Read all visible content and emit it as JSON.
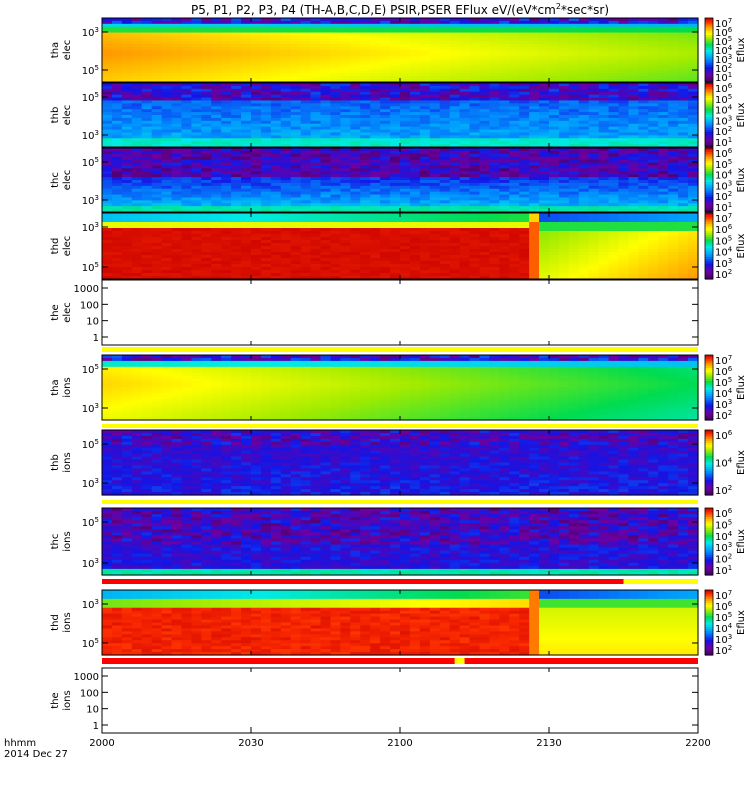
{
  "title": {
    "main": "P5, P1, P2, P3, P4 (TH-A,B,C,D,E) PSIR,PSER EFlux eV/(eV*cm",
    "sup": "2",
    "tail": "*sec*sr)"
  },
  "colors": {
    "background": "#ffffff",
    "saturated_red": "#cc0000",
    "flag_yellow": "#ffff00",
    "flag_red": "#ff0000"
  },
  "chart_data": {
    "type": "heatmap",
    "date": "2014 Dec 27",
    "time_axis": {
      "label": "hhmm",
      "range": [
        "2000",
        "2200"
      ],
      "ticks": [
        "2000",
        "2030",
        "2100",
        "2130",
        "2200"
      ]
    },
    "colorbar_label": "Eflux",
    "panels": [
      {
        "id": "tha-elec",
        "ylabel": [
          "tha",
          "elec"
        ],
        "y_ticks": [
          "10^3",
          "10^5"
        ],
        "colorbar_ticks": [
          "10^7",
          "10^6",
          "10^5",
          "10^4",
          "10^3",
          "10^2",
          "10^1"
        ],
        "pattern": "tha_elec"
      },
      {
        "id": "thb-elec",
        "ylabel": [
          "thb",
          "elec"
        ],
        "y_ticks": [
          "10^5",
          "10^3"
        ],
        "colorbar_ticks": [
          "10^6",
          "10^5",
          "10^4",
          "10^3",
          "10^2",
          "10^1"
        ],
        "pattern": "thb_elec"
      },
      {
        "id": "thc-elec",
        "ylabel": [
          "thc",
          "elec"
        ],
        "y_ticks": [
          "10^5",
          "10^3"
        ],
        "colorbar_ticks": [
          "10^6",
          "10^5",
          "10^4",
          "10^3",
          "10^2",
          "10^1"
        ],
        "pattern": "thc_elec"
      },
      {
        "id": "thd-elec",
        "ylabel": [
          "thd",
          "elec"
        ],
        "y_ticks": [
          "10^3",
          "10^5"
        ],
        "colorbar_ticks": [
          "10^7",
          "10^6",
          "10^5",
          "10^4",
          "10^3",
          "10^2"
        ],
        "pattern": "thd_elec"
      },
      {
        "id": "the-elec",
        "ylabel": [
          "the",
          "elec"
        ],
        "y_ticks": [
          "1000",
          "100",
          "10",
          "1"
        ],
        "empty": true
      },
      {
        "id": "tha-ions",
        "ylabel": [
          "tha",
          "ions"
        ],
        "y_ticks": [
          "10^5",
          "10^3"
        ],
        "colorbar_ticks": [
          "10^7",
          "10^6",
          "10^5",
          "10^4",
          "10^3",
          "10^2"
        ],
        "pattern": "tha_ions"
      },
      {
        "id": "thb-ions",
        "ylabel": [
          "thb",
          "ions"
        ],
        "y_ticks": [
          "10^5",
          "10^3"
        ],
        "colorbar_ticks": [
          "10^6",
          "10^4",
          "10^2"
        ],
        "pattern": "thb_ions"
      },
      {
        "id": "thc-ions",
        "ylabel": [
          "thc",
          "ions"
        ],
        "y_ticks": [
          "10^5",
          "10^3"
        ],
        "colorbar_ticks": [
          "10^6",
          "10^5",
          "10^4",
          "10^3",
          "10^2",
          "10^1"
        ],
        "pattern": "thc_ions"
      },
      {
        "id": "thd-ions",
        "ylabel": [
          "thd",
          "ions"
        ],
        "y_ticks": [
          "10^3",
          "10^5"
        ],
        "colorbar_ticks": [
          "10^7",
          "10^6",
          "10^5",
          "10^4",
          "10^3",
          "10^2"
        ],
        "pattern": "thd_ions"
      },
      {
        "id": "the-ions",
        "ylabel": [
          "the",
          "ions"
        ],
        "y_ticks": [
          "1000",
          "100",
          "10",
          "1"
        ],
        "empty": true
      }
    ],
    "flag_bars": [
      {
        "after": "the-elec",
        "segments": [
          {
            "from": "2000",
            "to": "2200",
            "color": "yellow"
          }
        ]
      },
      {
        "after": "tha-ions",
        "segments": [
          {
            "from": "2000",
            "to": "2200",
            "color": "yellow"
          }
        ]
      },
      {
        "after": "thb-ions",
        "segments": [
          {
            "from": "2000",
            "to": "2200",
            "color": "yellow"
          }
        ]
      },
      {
        "after": "thc-ions",
        "segments": [
          {
            "from": "2000",
            "to": "2145",
            "color": "red"
          },
          {
            "from": "2145",
            "to": "2200",
            "color": "yellow"
          }
        ]
      },
      {
        "after": "thd-ions",
        "segments": [
          {
            "from": "2000",
            "to": "2200",
            "color": "red"
          },
          {
            "from": "2111",
            "to": "2113",
            "color": "yellow"
          }
        ]
      }
    ]
  }
}
